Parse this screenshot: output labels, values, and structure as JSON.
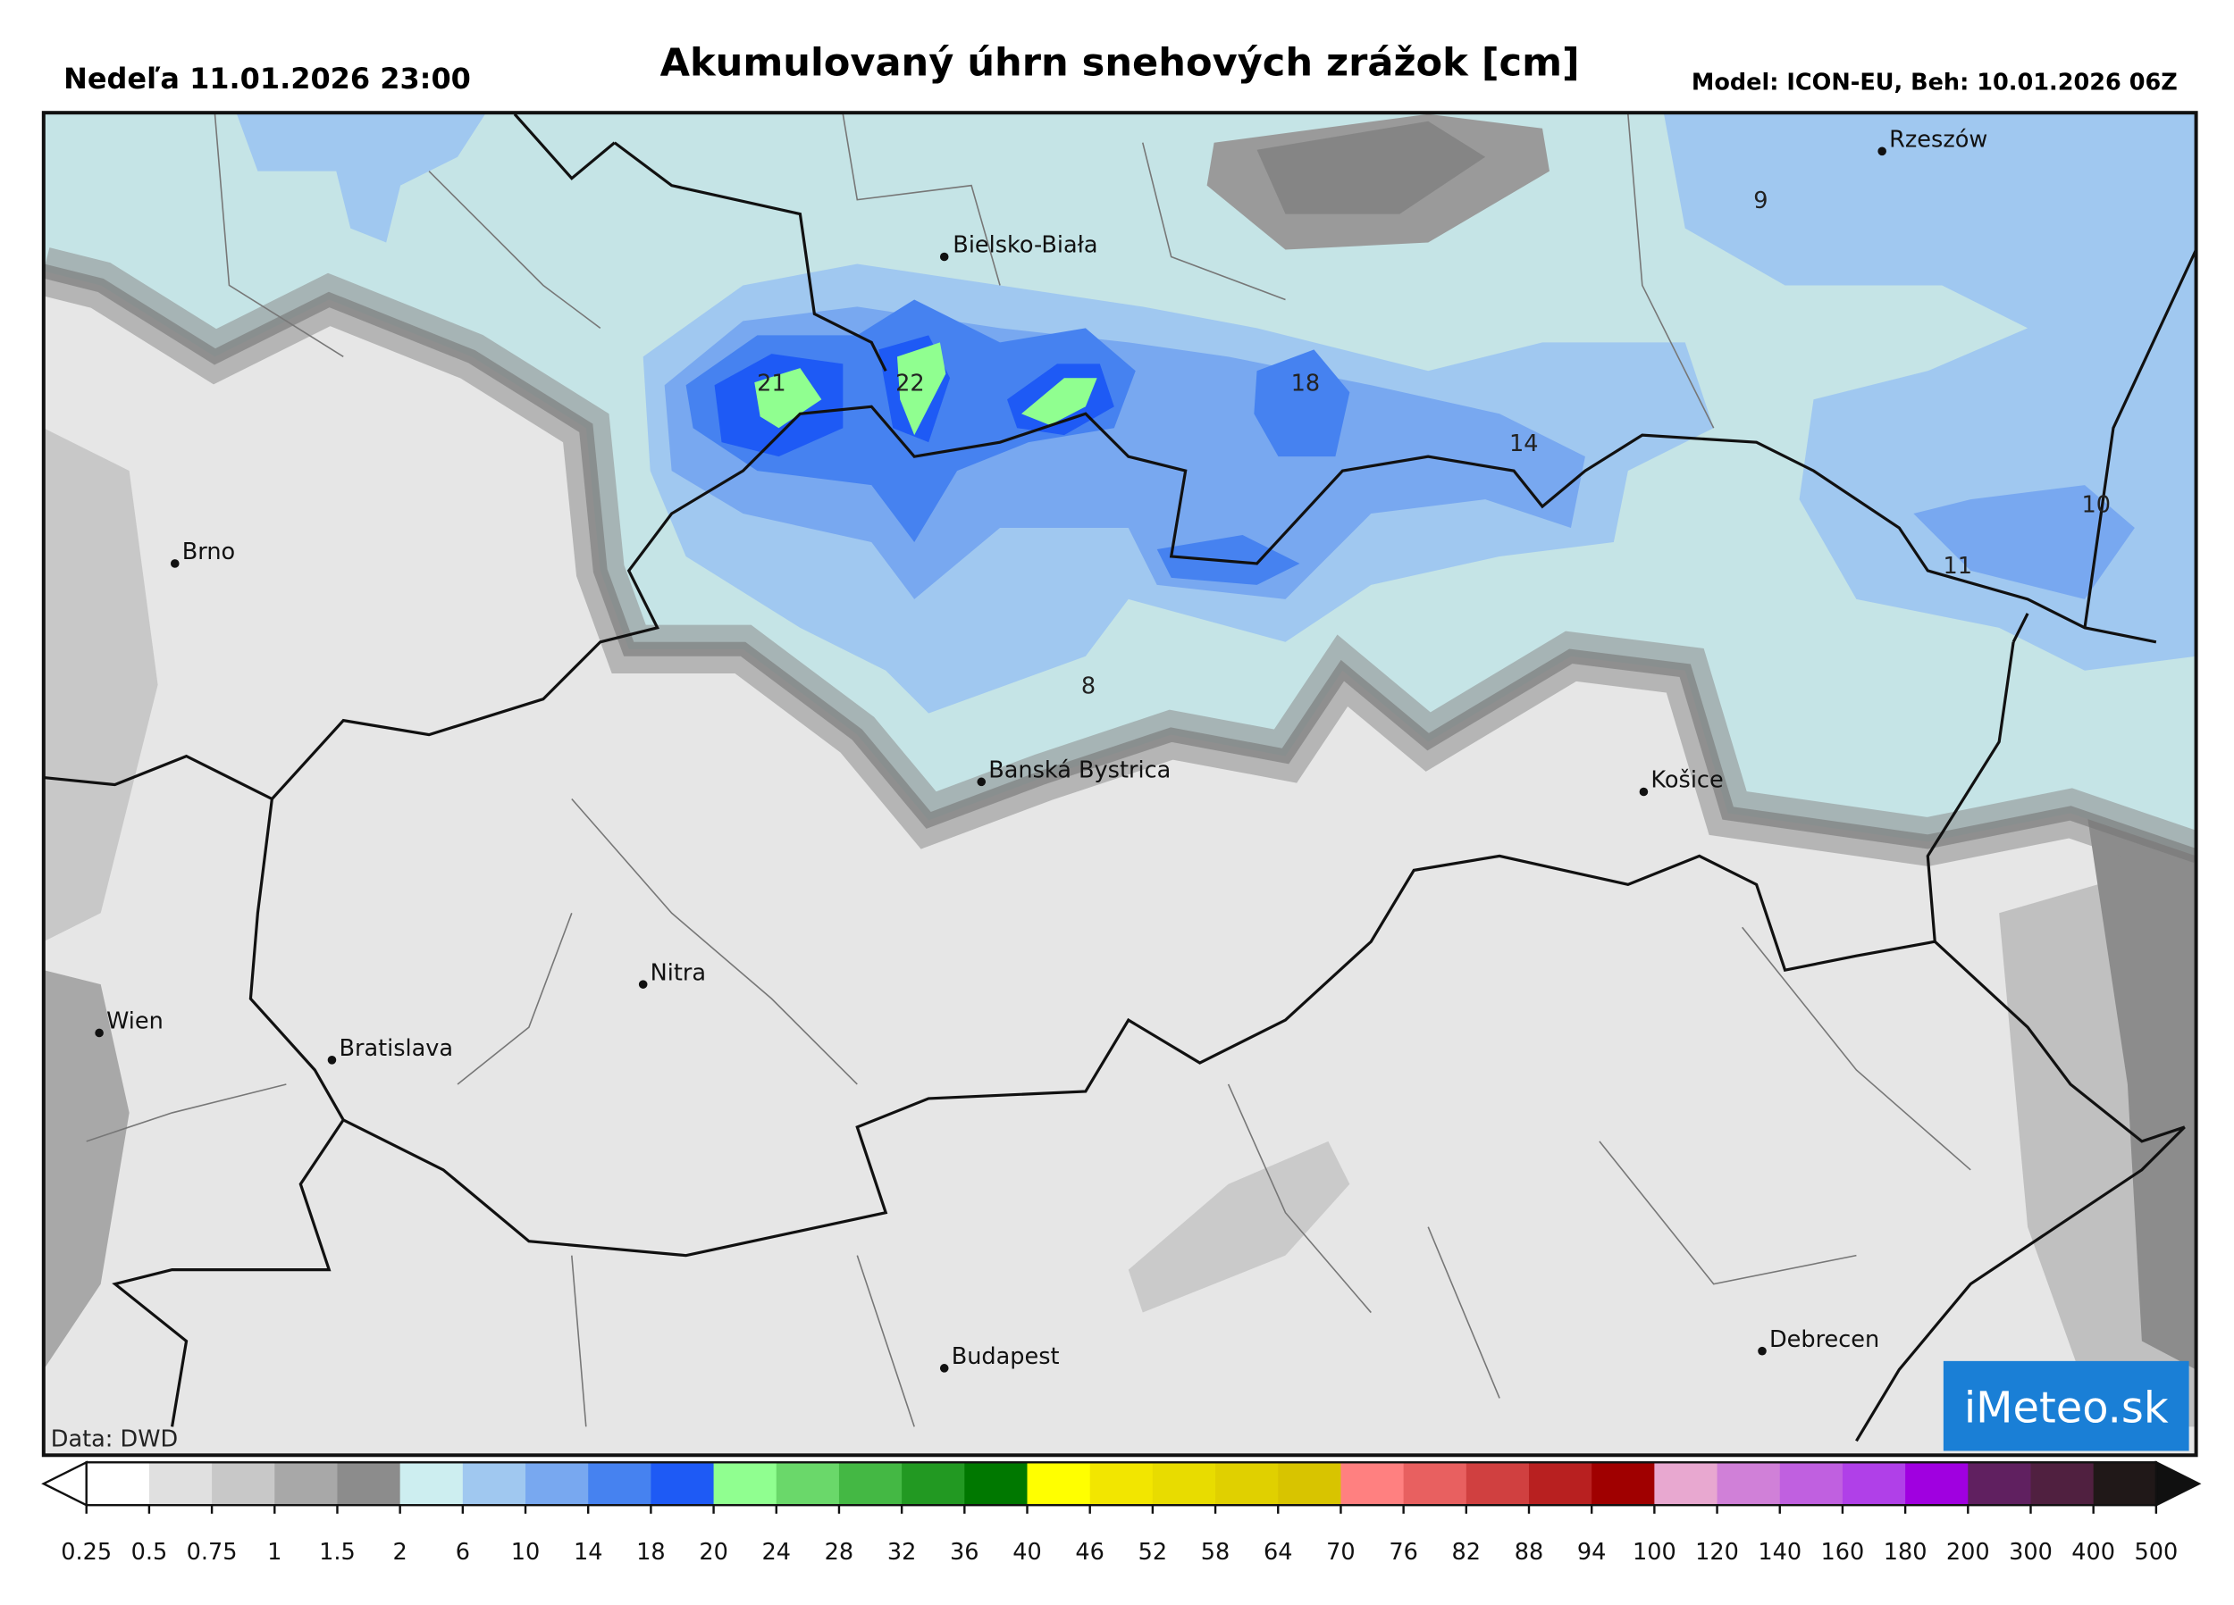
{
  "header": {
    "valid_time": "Nedeľa 11.01.2026 23:00",
    "title": "Akumulovaný úhrn snehových zrážok [cm]",
    "model": "Model: ICON-EU, Beh: 10.01.2026 06Z"
  },
  "map": {
    "cities": [
      "Rzeszów",
      "Bielsko-Biała",
      "Brno",
      "Banská Bystrica",
      "Košice",
      "Nitra",
      "Wien",
      "Bratislava",
      "Budapest",
      "Debrecen"
    ],
    "amount_labels": [
      21,
      22,
      18,
      14,
      9,
      10,
      11,
      8
    ],
    "source": "Data: DWD",
    "logo": "iMeteo.sk"
  },
  "colorbar": {
    "ticks": [
      0.25,
      0.5,
      0.75,
      1,
      1.5,
      2,
      6,
      10,
      14,
      18,
      20,
      24,
      28,
      32,
      36,
      40,
      46,
      52,
      58,
      64,
      70,
      76,
      82,
      88,
      94,
      100,
      120,
      140,
      160,
      180,
      200,
      300,
      400,
      500
    ],
    "colors": [
      "#ffffff",
      "#e0e0e0",
      "#c8c8c8",
      "#a8a8a8",
      "#8c8c8c",
      "#cdeef0",
      "#a0c8f0",
      "#78a8f0",
      "#4682f0",
      "#1e5af5",
      "#90ff90",
      "#6ad86a",
      "#44b844",
      "#229922",
      "#007800",
      "#ffff00",
      "#f2e600",
      "#e8dc00",
      "#e0d000",
      "#d8c400",
      "#ff8080",
      "#e86060",
      "#d04040",
      "#b82020",
      "#a00000",
      "#e8a8d0",
      "#d080d8",
      "#c060e0",
      "#b040e8",
      "#a000e0",
      "#602060",
      "#502040",
      "#201818"
    ],
    "under_color": "#ffffff",
    "over_color": "#101010"
  }
}
